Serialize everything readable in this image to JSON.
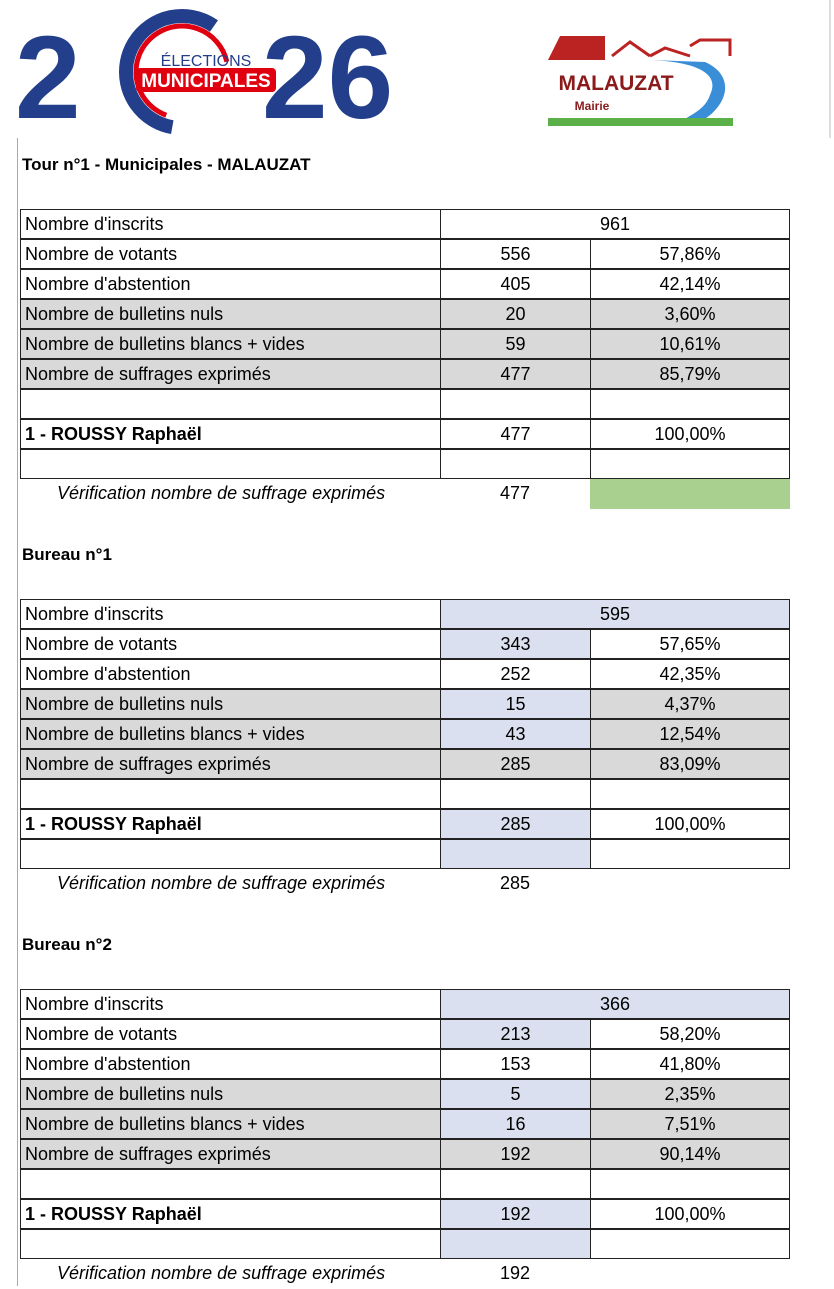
{
  "header": {
    "logo_left": {
      "digit_left": "2",
      "line1": "ÉLECTIONS",
      "line2": "MUNICIPALES",
      "digits_right": "26"
    },
    "logo_right": {
      "name": "MALAUZAT",
      "sub": "Mairie"
    }
  },
  "sections": [
    {
      "title": "Tour n°1 - Municipales - MALAUZAT",
      "rows": [
        [
          "Nombre d'inscrits",
          "961"
        ],
        [
          "Nombre de votants",
          "556",
          "57,86%"
        ],
        [
          "Nombre d'abstention",
          "405",
          "42,14%"
        ],
        [
          "Nombre de bulletins nuls",
          "20",
          "3,60%"
        ],
        [
          "Nombre de bulletins blancs + vides",
          "59",
          "10,61%"
        ],
        [
          "Nombre de suffrages exprimés",
          "477",
          "85,79%"
        ]
      ],
      "candidate": [
        "1 - ROUSSY Raphaël",
        "477",
        "100,00%"
      ],
      "verification": [
        "Vérification nombre de suffrage exprimés",
        "477"
      ]
    },
    {
      "title": "Bureau n°1",
      "rows": [
        [
          "Nombre d'inscrits",
          "595"
        ],
        [
          "Nombre de votants",
          "343",
          "57,65%"
        ],
        [
          "Nombre d'abstention",
          "252",
          "42,35%"
        ],
        [
          "Nombre de bulletins nuls",
          "15",
          "4,37%"
        ],
        [
          "Nombre de bulletins blancs + vides",
          "43",
          "12,54%"
        ],
        [
          "Nombre de suffrages exprimés",
          "285",
          "83,09%"
        ]
      ],
      "candidate": [
        "1 - ROUSSY Raphaël",
        "285",
        "100,00%"
      ],
      "verification": [
        "Vérification nombre de suffrage exprimés",
        "285"
      ]
    },
    {
      "title": "Bureau n°2",
      "rows": [
        [
          "Nombre d'inscrits",
          "366"
        ],
        [
          "Nombre de votants",
          "213",
          "58,20%"
        ],
        [
          "Nombre d'abstention",
          "153",
          "41,80%"
        ],
        [
          "Nombre de bulletins nuls",
          "5",
          "2,35%"
        ],
        [
          "Nombre de bulletins blancs + vides",
          "16",
          "7,51%"
        ],
        [
          "Nombre de suffrages exprimés",
          "192",
          "90,14%"
        ]
      ],
      "candidate": [
        "1 - ROUSSY Raphaël",
        "192",
        "100,00%"
      ],
      "verification": [
        "Vérification nombre de suffrage exprimés",
        "192"
      ]
    }
  ]
}
